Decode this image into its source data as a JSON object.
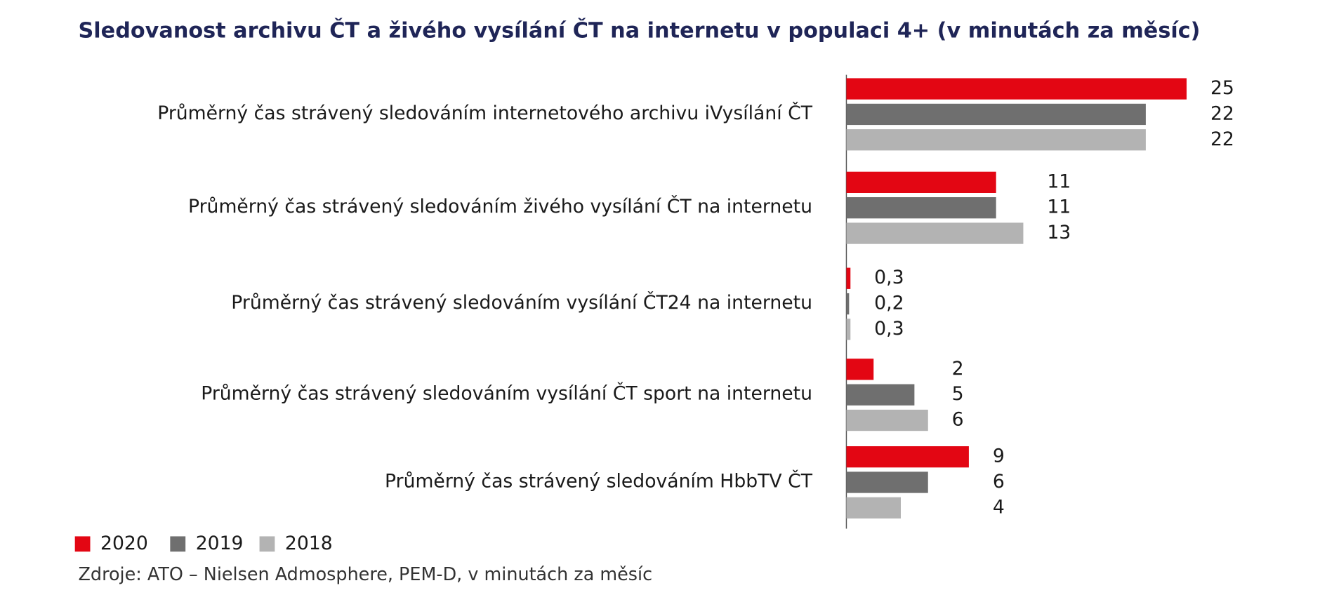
{
  "chart_data": {
    "type": "bar",
    "orientation": "horizontal",
    "title": "Sledovanost archivu ČT a živého vysílání ČT na internetu v populaci 4+ (v minutách za měsíc)",
    "categories": [
      "Průměrný čas strávený sledováním internetového archivu iVysílání ČT",
      "Průměrný čas strávený sledováním živého vysílání ČT na internetu",
      "Průměrný čas strávený sledováním vysílání ČT24 na internetu",
      "Průměrný čas strávený sledováním vysílání ČT sport na internetu",
      "Průměrný čas strávený sledováním HbbTV ČT"
    ],
    "series": [
      {
        "name": "2020",
        "color": "#e30613",
        "values": [
          25,
          11,
          0.3,
          2,
          9
        ],
        "value_labels": [
          "25",
          "11",
          "0,3",
          "2",
          "9"
        ]
      },
      {
        "name": "2019",
        "color": "#6f6f6f",
        "values": [
          22,
          11,
          0.2,
          5,
          6
        ],
        "value_labels": [
          "22",
          "11",
          "0,2",
          "5",
          "6"
        ]
      },
      {
        "name": "2018",
        "color": "#b3b3b3",
        "values": [
          22,
          13,
          0.3,
          6,
          4
        ],
        "value_labels": [
          "22",
          "13",
          "0,3",
          "6",
          "4"
        ]
      }
    ],
    "legend": "bottom-left",
    "source": "Zdroje:  ATO – Nielsen Admosphere, PEM-D, v minutách za měsíc"
  }
}
